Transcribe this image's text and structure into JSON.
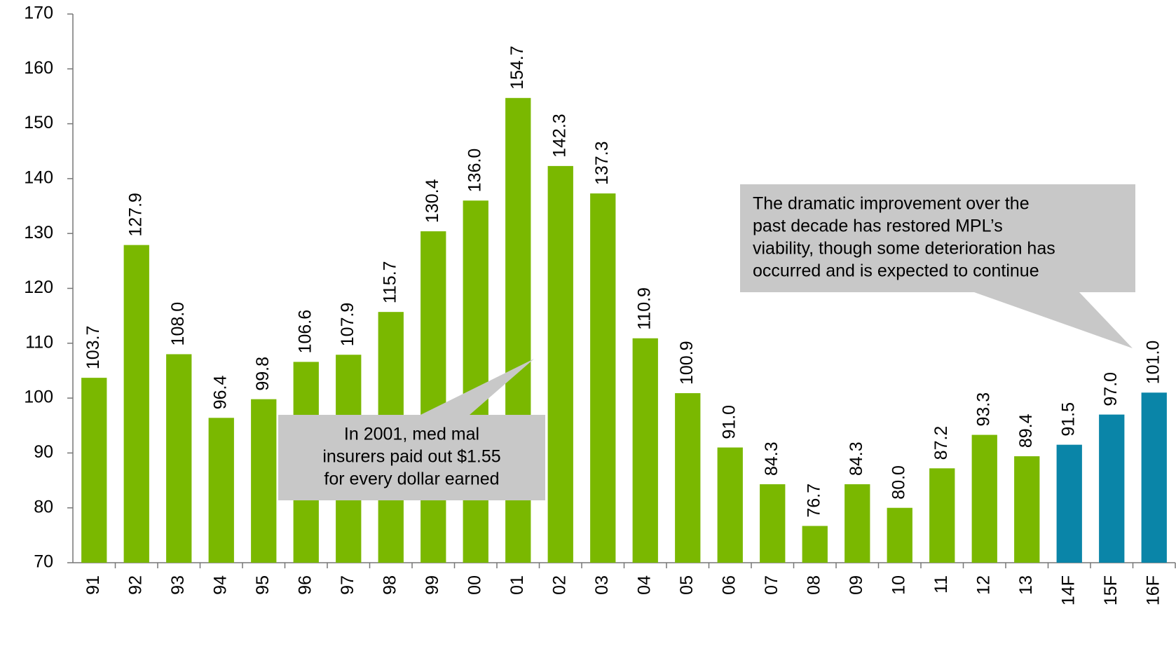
{
  "chart_data": {
    "type": "bar",
    "categories": [
      "91",
      "92",
      "93",
      "94",
      "95",
      "96",
      "97",
      "98",
      "99",
      "00",
      "01",
      "02",
      "03",
      "04",
      "05",
      "06",
      "07",
      "08",
      "09",
      "10",
      "11",
      "12",
      "13",
      "14F",
      "15F",
      "16F"
    ],
    "values": [
      103.7,
      127.9,
      108,
      96.4,
      99.8,
      106.6,
      107.9,
      115.7,
      130.4,
      136,
      154.7,
      142.3,
      137.3,
      110.9,
      100.9,
      91,
      84.3,
      76.7,
      84.3,
      80,
      87.2,
      93.3,
      89.4,
      91.5,
      97,
      101
    ],
    "value_labels": [
      "103.7",
      "127.9",
      "108.0",
      "96.4",
      "99.8",
      "106.6",
      "107.9",
      "115.7",
      "130.4",
      "136.0",
      "154.7",
      "142.3",
      "137.3",
      "110.9",
      "100.9",
      "91.0",
      "84.3",
      "76.7",
      "84.3",
      "80.0",
      "87.2",
      "93.3",
      "89.4",
      "91.5",
      "97.0",
      "101.0"
    ],
    "colors": [
      "#7ab800",
      "#7ab800",
      "#7ab800",
      "#7ab800",
      "#7ab800",
      "#7ab800",
      "#7ab800",
      "#7ab800",
      "#7ab800",
      "#7ab800",
      "#7ab800",
      "#7ab800",
      "#7ab800",
      "#7ab800",
      "#7ab800",
      "#7ab800",
      "#7ab800",
      "#7ab800",
      "#7ab800",
      "#7ab800",
      "#7ab800",
      "#7ab800",
      "#7ab800",
      "#0a85a8",
      "#0a85a8",
      "#0a85a8"
    ],
    "ylim": [
      70,
      170
    ],
    "yticks": [
      70,
      80,
      90,
      100,
      110,
      120,
      130,
      140,
      150,
      160,
      170
    ],
    "annotations": [
      {
        "lines": [
          "In 2001, med mal",
          "insurers paid out $1.55",
          "for every dollar earned"
        ]
      },
      {
        "lines": [
          "The dramatic improvement over the",
          "past decade has restored MPL’s",
          "viability, though some deterioration has",
          "occurred and is expected to continue"
        ]
      }
    ]
  }
}
